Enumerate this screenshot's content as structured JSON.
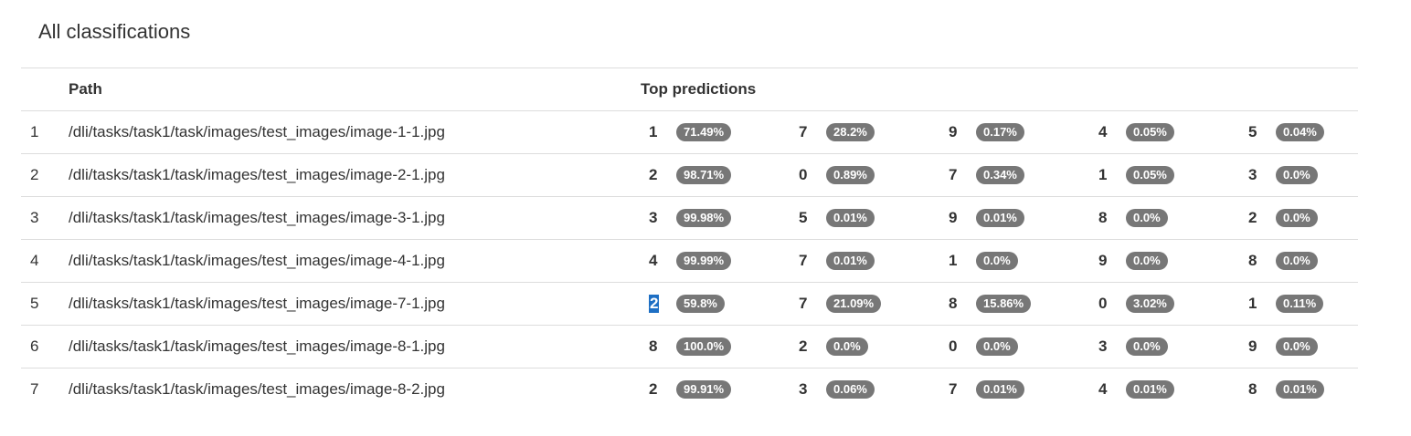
{
  "title": "All classifications",
  "columns": {
    "index": "",
    "path": "Path",
    "predictions": "Top predictions"
  },
  "rows": [
    {
      "index": "1",
      "path": "/dli/tasks/task1/task/images/test_images/image-1-1.jpg",
      "predictions": [
        {
          "label": "1",
          "pct": "71.49%"
        },
        {
          "label": "7",
          "pct": "28.2%"
        },
        {
          "label": "9",
          "pct": "0.17%"
        },
        {
          "label": "4",
          "pct": "0.05%"
        },
        {
          "label": "5",
          "pct": "0.04%"
        }
      ]
    },
    {
      "index": "2",
      "path": "/dli/tasks/task1/task/images/test_images/image-2-1.jpg",
      "predictions": [
        {
          "label": "2",
          "pct": "98.71%"
        },
        {
          "label": "0",
          "pct": "0.89%"
        },
        {
          "label": "7",
          "pct": "0.34%"
        },
        {
          "label": "1",
          "pct": "0.05%"
        },
        {
          "label": "3",
          "pct": "0.0%"
        }
      ]
    },
    {
      "index": "3",
      "path": "/dli/tasks/task1/task/images/test_images/image-3-1.jpg",
      "predictions": [
        {
          "label": "3",
          "pct": "99.98%"
        },
        {
          "label": "5",
          "pct": "0.01%"
        },
        {
          "label": "9",
          "pct": "0.01%"
        },
        {
          "label": "8",
          "pct": "0.0%"
        },
        {
          "label": "2",
          "pct": "0.0%"
        }
      ]
    },
    {
      "index": "4",
      "path": "/dli/tasks/task1/task/images/test_images/image-4-1.jpg",
      "predictions": [
        {
          "label": "4",
          "pct": "99.99%"
        },
        {
          "label": "7",
          "pct": "0.01%"
        },
        {
          "label": "1",
          "pct": "0.0%"
        },
        {
          "label": "9",
          "pct": "0.0%"
        },
        {
          "label": "8",
          "pct": "0.0%"
        }
      ]
    },
    {
      "index": "5",
      "path": "/dli/tasks/task1/task/images/test_images/image-7-1.jpg",
      "predictions": [
        {
          "label": "2",
          "pct": "59.8%",
          "selected": true
        },
        {
          "label": "7",
          "pct": "21.09%"
        },
        {
          "label": "8",
          "pct": "15.86%"
        },
        {
          "label": "0",
          "pct": "3.02%"
        },
        {
          "label": "1",
          "pct": "0.11%"
        }
      ]
    },
    {
      "index": "6",
      "path": "/dli/tasks/task1/task/images/test_images/image-8-1.jpg",
      "predictions": [
        {
          "label": "8",
          "pct": "100.0%"
        },
        {
          "label": "2",
          "pct": "0.0%"
        },
        {
          "label": "0",
          "pct": "0.0%"
        },
        {
          "label": "3",
          "pct": "0.0%"
        },
        {
          "label": "9",
          "pct": "0.0%"
        }
      ]
    },
    {
      "index": "7",
      "path": "/dli/tasks/task1/task/images/test_images/image-8-2.jpg",
      "predictions": [
        {
          "label": "2",
          "pct": "99.91%"
        },
        {
          "label": "3",
          "pct": "0.06%"
        },
        {
          "label": "7",
          "pct": "0.01%"
        },
        {
          "label": "4",
          "pct": "0.01%"
        },
        {
          "label": "8",
          "pct": "0.01%"
        }
      ]
    }
  ],
  "colors": {
    "badge_bg": "#777777",
    "badge_text": "#ffffff",
    "selection": "#1e6fc4",
    "border": "#dddddd",
    "text": "#333333"
  }
}
